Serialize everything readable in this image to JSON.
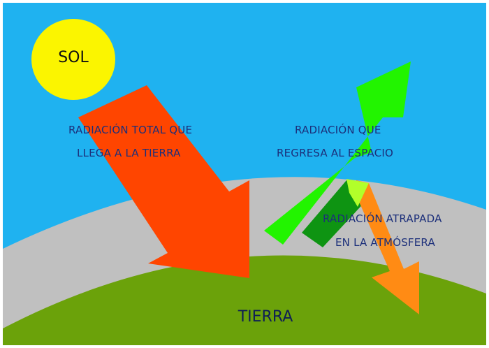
{
  "labels": {
    "sun": "SOL",
    "earth": "TIERRA",
    "incoming_line1": "RADIACIÓN TOTAL QUE",
    "incoming_line2": "LLEGA  A LA TIERRA",
    "escaping_line1": "RADIACIÓN QUE",
    "escaping_line2": "REGRESA AL ESPACIO",
    "trapped_line1": "RADIACIÓN ATRAPADA",
    "trapped_line2": "EN LA ATMÓSFERA"
  },
  "colors": {
    "sky": "#1fb2f0",
    "atmosphere": "#c0c0c0",
    "ground": "#6ba20a",
    "sun": "#fbf500",
    "incoming_arrow": "#ff4500",
    "escaping_arrow": "#22f400",
    "trapped_band": "#0e9412",
    "reflected_arrow": "#ff8b14",
    "overlap_highlight": "#b2ff2a",
    "label_text": "#1c2f7a"
  }
}
